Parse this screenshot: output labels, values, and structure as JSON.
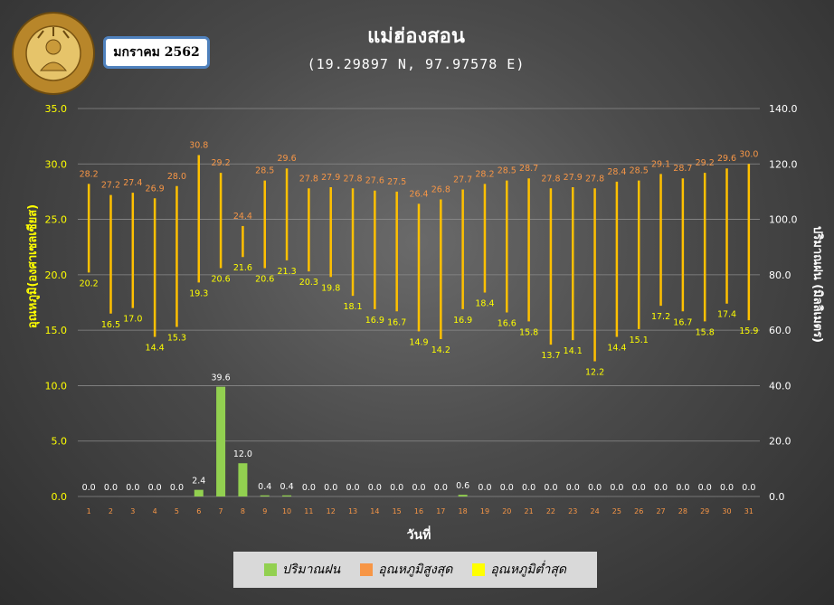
{
  "header": {
    "title": "แม่ฮ่องสอน",
    "subtitle": "(19.29897 N, 97.97578 E)",
    "month": "มกราคม 2562",
    "logo_text": "กรมอุตุนิยมวิทยา",
    "logo_text_en": "METEOROLOGICAL DEPARTMENT"
  },
  "legend": {
    "rain": "ปริมาณฝน",
    "tmax": "อุณหภูมิสูงสุด",
    "tmin": "อุณหภูมิต่ำสุด"
  },
  "colors": {
    "rain": "#92d050",
    "range": "#ffc000",
    "tmax_label": "#f79646",
    "tmin_label": "#ffff00",
    "left_axis": "#ffff00",
    "right_axis": "#ffffff",
    "x_ticks": "#f79646",
    "legend_tmax": "#f79646",
    "legend_tmin": "#ffff00"
  },
  "chart_data": {
    "type": "bar",
    "xlabel": "วันที่",
    "ylabel_left": "อุณหภูมิ(องศาเซลเซียส)",
    "ylabel_right": "ปริมาณฝน (มิลลิเมตร)",
    "ylim_left": [
      0,
      35
    ],
    "yticks_left": [
      "0.0",
      "5.0",
      "10.0",
      "15.0",
      "20.0",
      "25.0",
      "30.0",
      "35.0"
    ],
    "ylim_right": [
      0,
      140
    ],
    "yticks_right": [
      "0.0",
      "20.0",
      "40.0",
      "60.0",
      "80.0",
      "100.0",
      "120.0",
      "140.0"
    ],
    "categories": [
      "1",
      "2",
      "3",
      "4",
      "5",
      "6",
      "7",
      "8",
      "9",
      "10",
      "11",
      "12",
      "13",
      "14",
      "15",
      "16",
      "17",
      "18",
      "19",
      "20",
      "21",
      "22",
      "23",
      "24",
      "25",
      "26",
      "27",
      "28",
      "29",
      "30",
      "31"
    ],
    "series": [
      {
        "name": "ปริมาณฝน",
        "axis": "right",
        "values": [
          0.0,
          0.0,
          0.0,
          0.0,
          0.0,
          2.4,
          39.6,
          12.0,
          0.4,
          0.4,
          0.0,
          0.0,
          0.0,
          0.0,
          0.0,
          0.0,
          0.0,
          0.6,
          0.0,
          0.0,
          0.0,
          0.0,
          0.0,
          0.0,
          0.0,
          0.0,
          0.0,
          0.0,
          0.0,
          0.0,
          0.0
        ]
      },
      {
        "name": "อุณหภูมิสูงสุด",
        "axis": "left",
        "values": [
          28.2,
          27.2,
          27.4,
          26.9,
          28.0,
          30.8,
          29.2,
          24.4,
          28.5,
          29.6,
          27.8,
          27.9,
          27.8,
          27.6,
          27.5,
          26.4,
          26.8,
          27.7,
          28.2,
          28.5,
          28.7,
          27.8,
          27.9,
          27.8,
          28.4,
          28.5,
          29.1,
          28.7,
          29.2,
          29.6,
          30.0
        ]
      },
      {
        "name": "อุณหภูมิต่ำสุด",
        "axis": "left",
        "values": [
          20.2,
          16.5,
          17.0,
          14.4,
          15.3,
          19.3,
          20.6,
          21.6,
          20.6,
          21.3,
          20.3,
          19.8,
          18.1,
          16.9,
          16.7,
          14.9,
          14.2,
          16.9,
          18.4,
          16.6,
          15.8,
          13.7,
          14.1,
          12.2,
          14.4,
          15.1,
          17.2,
          16.7,
          15.8,
          17.4,
          15.9
        ]
      }
    ]
  }
}
